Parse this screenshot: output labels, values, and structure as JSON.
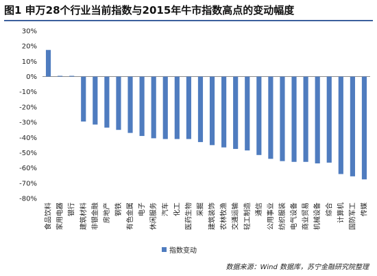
{
  "header": {
    "title": "图1 申万28个行业当前指数与2015年牛市指数高点的变动幅度"
  },
  "legend": {
    "label": "指数变动"
  },
  "source": "数据来源：Wind 数据库，苏宁金融研究院整理",
  "colors": {
    "bar": "#4f7cbf",
    "title_rule": "#3b5f9c"
  },
  "chart_data": {
    "type": "bar",
    "categories": [
      "食品饮料",
      "家用电器",
      "银行",
      "建筑材料",
      "非银金融",
      "房地产",
      "钢铁",
      "有色金属",
      "电子",
      "休闲服务",
      "汽车",
      "化工",
      "医药生物",
      "采掘",
      "建筑装饰",
      "农林牧渔",
      "交通运输",
      "轻工制造",
      "通信",
      "公用事业",
      "纺织服装",
      "电气设备",
      "商业贸易",
      "机械设备",
      "综合",
      "计算机",
      "国防军工",
      "传媒"
    ],
    "series": [
      {
        "name": "指数变动",
        "values": [
          17.5,
          0.5,
          0.5,
          -29.5,
          -31.5,
          -33.5,
          -35,
          -37,
          -39,
          -40.5,
          -41,
          -41,
          -41,
          -43,
          -45,
          -46.5,
          -47.5,
          -48.5,
          -51.5,
          -54,
          -55.5,
          -56,
          -56,
          -57,
          -56.5,
          -64,
          -65.5,
          -67.5
        ]
      }
    ],
    "yticks": [
      "30%",
      "20%",
      "10%",
      "0%",
      "-10%",
      "-20%",
      "-30%",
      "-40%",
      "-50%",
      "-60%",
      "-70%",
      "-80%"
    ],
    "ylim": [
      -80,
      30
    ],
    "grid": false,
    "legend_position": "bottom"
  }
}
